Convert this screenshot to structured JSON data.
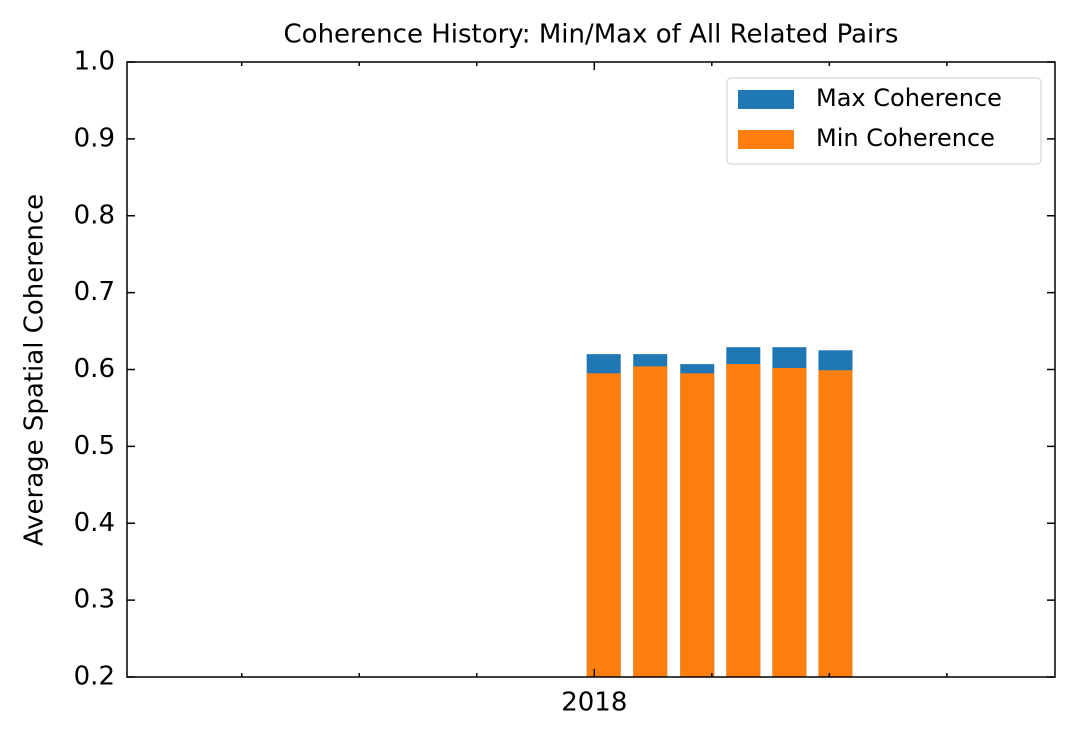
{
  "chart_data": {
    "type": "bar",
    "title": "Coherence History: Min/Max of All Related Pairs",
    "y_label": "Average Spatial Coherence",
    "x": [
      2018.02,
      2018.119,
      2018.219,
      2018.317,
      2018.415,
      2018.513
    ],
    "series": [
      {
        "name": "Max Coherence",
        "color": "#1f77b4",
        "values": [
          0.62,
          0.62,
          0.607,
          0.629,
          0.629,
          0.625
        ]
      },
      {
        "name": "Min Coherence",
        "color": "#ff7f0e",
        "values": [
          0.595,
          0.604,
          0.595,
          0.607,
          0.602,
          0.599
        ]
      }
    ],
    "xlim": [
      2017.006,
      2018.98
    ],
    "xticks": [
      2018
    ],
    "xticks_minor": [
      2017.25,
      2017.5,
      2017.75,
      2018.25,
      2018.5,
      2018.75
    ],
    "ylim": [
      0.2,
      1.0
    ],
    "yticks": [
      {
        "value": 0.2,
        "label": "0.2"
      },
      0.3,
      0.4,
      0.5,
      0.6,
      0.7,
      0.8,
      0.9,
      {
        "value": 1.0,
        "label": "1.0"
      }
    ],
    "grid": false,
    "legend": "upper right"
  }
}
